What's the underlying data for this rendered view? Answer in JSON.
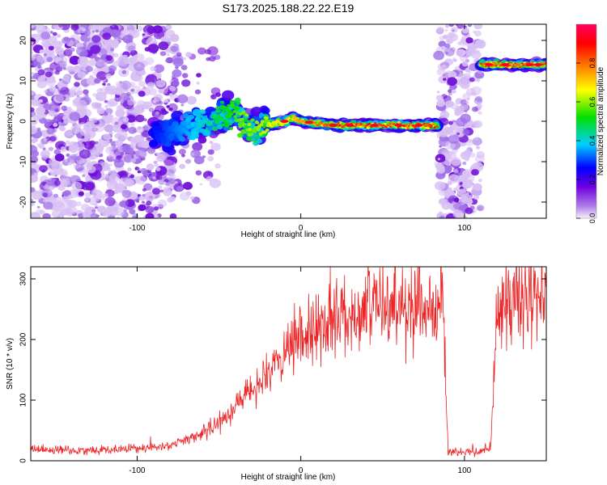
{
  "title": "S173.2025.188.22.22.E19",
  "chart_data": [
    {
      "type": "heatmap",
      "xlabel": "Height of straight line (km)",
      "ylabel": "Frequency (Hz)",
      "xlim": [
        -165,
        150
      ],
      "ylim": [
        -24,
        24
      ],
      "xticks": [
        -100,
        0,
        100
      ],
      "yticks": [
        -20,
        -10,
        0,
        10,
        20
      ],
      "colorbar": {
        "label": "Normalized spectral amplitude",
        "range": [
          0,
          1
        ],
        "ticks": [
          0.0,
          0.2,
          0.4,
          0.6,
          0.8
        ],
        "colormap": [
          "#f7f0fb",
          "#7000e0",
          "#0000ff",
          "#00d0ff",
          "#00e000",
          "#ffff00",
          "#ff8000",
          "#ff0000",
          "#ff0060"
        ]
      },
      "ridge": {
        "x": [
          -90,
          -80,
          -70,
          -60,
          -50,
          -40,
          -35,
          -30,
          -20,
          -10,
          -5,
          0,
          20,
          40,
          60,
          80,
          84,
          110,
          150
        ],
        "y": [
          -3,
          -3,
          -2,
          -1,
          1,
          2,
          0,
          -2,
          -1,
          0,
          1,
          0,
          -1,
          -1,
          -1,
          -1,
          -1,
          14,
          14
        ]
      }
    },
    {
      "type": "line",
      "xlabel": "Height of straight line (km)",
      "ylabel": "SNR (10 * v/v)",
      "xlim": [
        -165,
        150
      ],
      "ylim": [
        0,
        320
      ],
      "xticks": [
        -100,
        0,
        100
      ],
      "yticks": [
        0,
        100,
        200,
        300
      ],
      "series": [
        {
          "color": "#ee2222",
          "x": [
            -165,
            -140,
            -120,
            -100,
            -80,
            -60,
            -50,
            -40,
            -30,
            -20,
            -10,
            0,
            10,
            20,
            30,
            40,
            50,
            60,
            70,
            80,
            87,
            90,
            100,
            110,
            116,
            120,
            130,
            140,
            150
          ],
          "y": [
            18,
            17,
            18,
            20,
            25,
            45,
            65,
            90,
            115,
            140,
            170,
            200,
            220,
            235,
            245,
            250,
            252,
            255,
            255,
            255,
            250,
            15,
            15,
            15,
            18,
            250,
            265,
            270,
            270
          ]
        }
      ]
    }
  ]
}
